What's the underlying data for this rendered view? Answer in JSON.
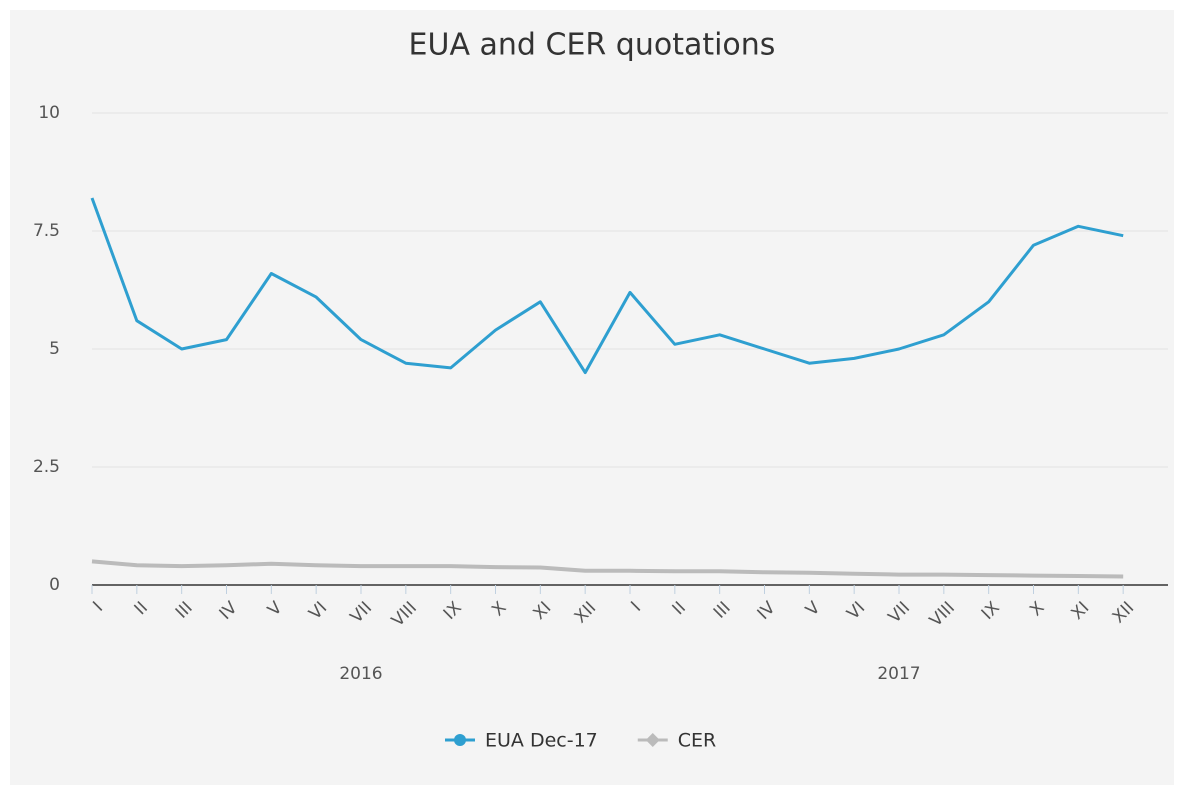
{
  "chart_data": {
    "type": "line",
    "title": "EUA and CER quotations",
    "category_groups": [
      {
        "name": "2016",
        "categories": [
          "I",
          "II",
          "III",
          "IV",
          "V",
          "VI",
          "VII",
          "VIII",
          "IX",
          "X",
          "XI",
          "XII"
        ]
      },
      {
        "name": "2017",
        "categories": [
          "I",
          "II",
          "III",
          "IV",
          "V",
          "VI",
          "VII",
          "VIII",
          "IX",
          "X",
          "XI",
          "XII"
        ]
      }
    ],
    "series": [
      {
        "name": "EUA Dec-17",
        "color": "#2e9fd0",
        "marker": "circle",
        "values": [
          8.2,
          5.6,
          5.0,
          5.2,
          6.6,
          6.1,
          5.2,
          4.7,
          4.6,
          5.4,
          6.0,
          4.5,
          6.2,
          5.1,
          5.3,
          5.0,
          4.7,
          4.8,
          5.0,
          5.3,
          6.0,
          7.2,
          7.6,
          7.4
        ]
      },
      {
        "name": "CER",
        "color": "#bbbbbb",
        "marker": "diamond",
        "values": [
          0.5,
          0.42,
          0.4,
          0.42,
          0.45,
          0.42,
          0.4,
          0.4,
          0.4,
          0.38,
          0.37,
          0.3,
          0.3,
          0.29,
          0.29,
          0.27,
          0.26,
          0.24,
          0.22,
          0.22,
          0.21,
          0.2,
          0.19,
          0.18
        ]
      }
    ],
    "ylim": [
      0,
      10
    ],
    "yticks": [
      0,
      2.5,
      5,
      7.5,
      10
    ],
    "grid": true,
    "legend": "bottom"
  }
}
